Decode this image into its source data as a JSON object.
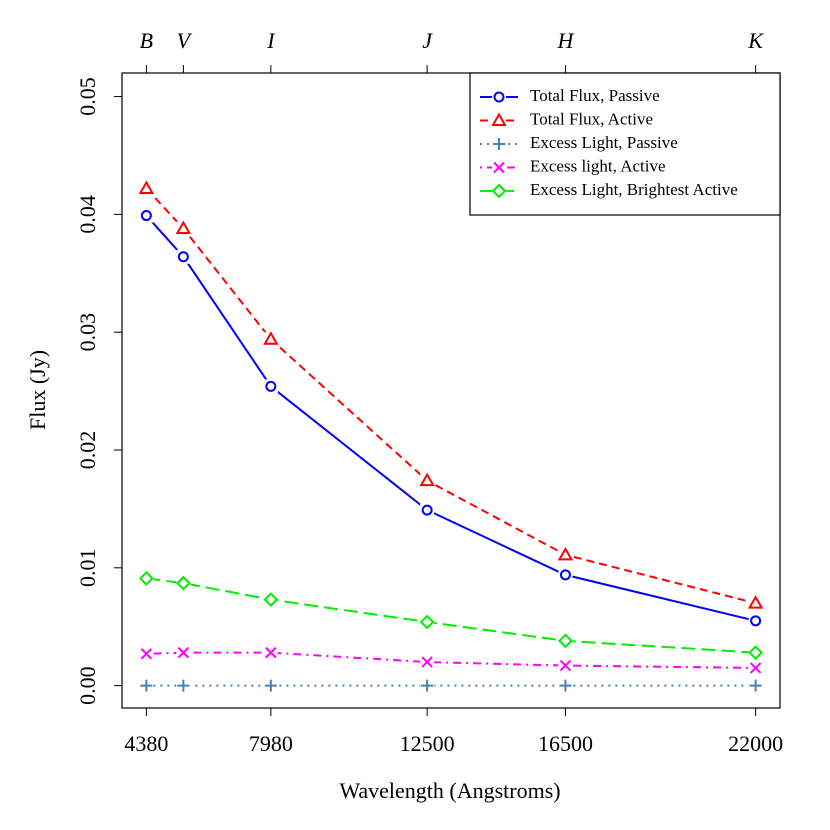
{
  "chart_data": {
    "type": "line",
    "x_label": "Wavelength (Angstroms)",
    "y_label": "Flux (Jy)",
    "x": [
      4380,
      5450,
      7980,
      12500,
      16500,
      22000
    ],
    "xlim": [
      3675,
      22705
    ],
    "xticks": [
      4380,
      7980,
      12500,
      16500,
      22000
    ],
    "x2ticks": [
      {
        "value": 4380,
        "label": "B"
      },
      {
        "value": 5450,
        "label": "V"
      },
      {
        "value": 7980,
        "label": "I"
      },
      {
        "value": 12500,
        "label": "J"
      },
      {
        "value": 16500,
        "label": "H"
      },
      {
        "value": 22000,
        "label": "K"
      }
    ],
    "ylim": [
      -0.0019,
      0.052
    ],
    "yticks": [
      {
        "value": 0,
        "label": "0.00"
      },
      0.01,
      0.02,
      0.03,
      0.04,
      0.05
    ],
    "legend_position": "top-right",
    "series": [
      {
        "name": "Total Flux, Passive",
        "color": "#0000ff",
        "marker": "circle",
        "dash": "solid",
        "values": [
          0.0399,
          0.0364,
          0.0254,
          0.0149,
          0.0094,
          0.0055
        ]
      },
      {
        "name": "Total Flux, Active",
        "color": "#ff0000",
        "marker": "triangle",
        "dash": "dashed",
        "values": [
          0.0422,
          0.0388,
          0.0294,
          0.0174,
          0.0111,
          0.007
        ]
      },
      {
        "name": "Excess Light, Passive",
        "color": "#4682b4",
        "marker": "plus",
        "dash": "dotted",
        "values": [
          0,
          0,
          0,
          0,
          0,
          0
        ]
      },
      {
        "name": "Excess light, Active",
        "color": "#ff00ff",
        "marker": "cross",
        "dash": "dotdash",
        "values": [
          0.0027,
          0.0028,
          0.0028,
          0.002,
          0.0017,
          0.0015
        ]
      },
      {
        "name": "Excess Light, Brightest Active",
        "color": "#00ee00",
        "marker": "diamond",
        "dash": "longdash",
        "values": [
          0.0091,
          0.0087,
          0.0073,
          0.0054,
          0.0038,
          0.0028
        ]
      }
    ]
  }
}
